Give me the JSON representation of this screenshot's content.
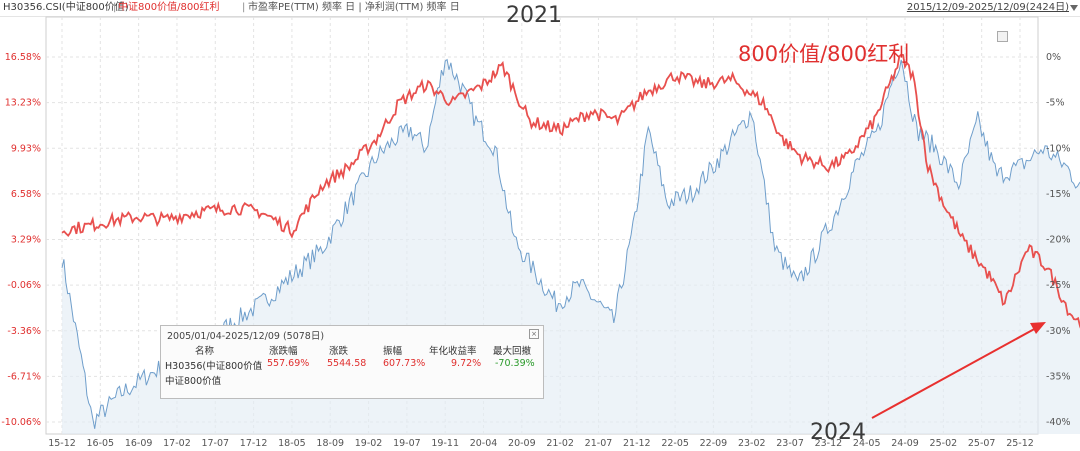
{
  "header": {
    "blue_series": "H30356.CSI(中证800价值)",
    "sep1": "|",
    "red_series": "中证800价值/800红利",
    "sep2": "|",
    "indicators": "市盈率PE(TTM) 频率 日 | 净利润(TTM) 频率 日",
    "range_link": "2015/12/09-2025/12/09(2424日)"
  },
  "annotations": {
    "year_2021": "2021",
    "year_2024": "2024",
    "ratio_title": "800价值/800红利",
    "arrow_color": "#e8302f"
  },
  "stats_panel": {
    "title": "2005/01/04-2025/12/09 (5078日)",
    "close_label": "×",
    "headers": [
      "名称",
      "涨跌幅",
      "涨跌",
      "振幅",
      "年化收益率",
      "最大回撤"
    ],
    "row1": {
      "name": "H30356(中证800价值",
      "change_pct": "557.69%",
      "change": "5544.58",
      "amplitude": "607.73%",
      "annual_return": "9.72%",
      "max_drawdown": "-70.39%"
    },
    "row2": {
      "name": "中证800价值"
    }
  },
  "chart_data": {
    "type": "line",
    "colors": {
      "ratio": "#e8504e",
      "index": "#6f9ecb",
      "index_fill": "#e4ecf5"
    },
    "x_ticks": [
      "15-12",
      "16-05",
      "16-09",
      "17-02",
      "17-07",
      "17-12",
      "18-05",
      "18-09",
      "19-02",
      "19-07",
      "19-11",
      "20-04",
      "20-09",
      "21-02",
      "21-07",
      "21-12",
      "22-05",
      "22-09",
      "23-02",
      "23-07",
      "23-12",
      "24-05",
      "24-09",
      "25-02",
      "25-07",
      "25-12"
    ],
    "left_axis": {
      "ticks": [
        "16.58%",
        "13.23%",
        "9.93%",
        "6.58%",
        "3.29%",
        "-0.06%",
        "-3.36%",
        "-6.71%",
        "-10.06%"
      ],
      "values": [
        16.58,
        13.23,
        9.93,
        6.58,
        3.29,
        -0.06,
        -3.36,
        -6.71,
        -10.06
      ]
    },
    "right_axis": {
      "ticks": [
        "0%",
        "-5%",
        "-10%",
        "-15%",
        "-20%",
        "-25%",
        "-30%",
        "-35%",
        "-40%"
      ],
      "values": [
        0,
        -5,
        -10,
        -15,
        -20,
        -25,
        -30,
        -35,
        -40
      ]
    },
    "series": [
      {
        "name": "中证800价值/800红利",
        "axis": "right",
        "points": [
          [
            0.0,
            -19.0
          ],
          [
            0.7,
            -18.5
          ],
          [
            1.2,
            -18.0
          ],
          [
            2.0,
            -17.5
          ],
          [
            2.7,
            -17.8
          ],
          [
            3.5,
            -17.0
          ],
          [
            4.5,
            -16.5
          ],
          [
            5.2,
            -17.0
          ],
          [
            6.0,
            -19.0
          ],
          [
            6.8,
            -14.0
          ],
          [
            7.5,
            -12.0
          ],
          [
            8.2,
            -9.0
          ],
          [
            8.5,
            -7.0
          ],
          [
            8.8,
            -5.0
          ],
          [
            9.5,
            -3.0
          ],
          [
            10.2,
            -5.0
          ],
          [
            11.0,
            -3.0
          ],
          [
            11.5,
            -1.0
          ],
          [
            12.2,
            -7.0
          ],
          [
            13.0,
            -8.0
          ],
          [
            13.8,
            -6.0
          ],
          [
            14.5,
            -7.0
          ],
          [
            15.2,
            -4.0
          ],
          [
            16.0,
            -2.0
          ],
          [
            16.7,
            -3.0
          ],
          [
            17.5,
            -2.5
          ],
          [
            18.3,
            -5.0
          ],
          [
            18.8,
            -9.0
          ],
          [
            19.3,
            -11.0
          ],
          [
            20.0,
            -12.0
          ],
          [
            20.5,
            -11.0
          ],
          [
            21.2,
            -7.0
          ],
          [
            21.6,
            -3.0
          ],
          [
            21.9,
            0.0
          ],
          [
            22.2,
            -2.0
          ],
          [
            22.6,
            -12.0
          ],
          [
            23.0,
            -16.0
          ],
          [
            23.5,
            -20.0
          ],
          [
            24.2,
            -24.0
          ],
          [
            24.6,
            -27.0
          ],
          [
            25.2,
            -21.0
          ],
          [
            25.7,
            -23.0
          ],
          [
            26.3,
            -28.0
          ],
          [
            27.0,
            -31.0
          ],
          [
            27.6,
            -31.5
          ],
          [
            28.2,
            -33.0
          ],
          [
            28.8,
            -35.0
          ],
          [
            29.5,
            -33.0
          ],
          [
            30.2,
            -33.5
          ],
          [
            30.8,
            -31.0
          ],
          [
            31.5,
            -34.0
          ],
          [
            32.0,
            -35.0
          ],
          [
            32.7,
            -36.0
          ],
          [
            33.3,
            -39.0
          ],
          [
            33.8,
            -40.0
          ],
          [
            34.2,
            -39.0
          ],
          [
            34.7,
            -38.0
          ],
          [
            35.3,
            -33.5
          ],
          [
            36.0,
            -32.0
          ],
          [
            36.5,
            -30.0
          ],
          [
            37.0,
            -32.0
          ],
          [
            37.6,
            -29.0
          ],
          [
            38.0,
            -31.0
          ],
          [
            38.6,
            -28.5
          ],
          [
            39.2,
            -29.5
          ],
          [
            39.8,
            -26.5
          ],
          [
            40.2,
            -28.0
          ],
          [
            40.6,
            -27.0
          ],
          [
            41.0,
            -29.0
          ],
          [
            41.4,
            -25.5
          ]
        ]
      },
      {
        "name": "H30356(中证800价值)",
        "axis": "right",
        "points": [
          [
            0.0,
            -22.0
          ],
          [
            0.5,
            -33.0
          ],
          [
            0.8,
            -40.0
          ],
          [
            1.5,
            -37.0
          ],
          [
            2.2,
            -35.0
          ],
          [
            3.0,
            -33.0
          ],
          [
            3.8,
            -31.0
          ],
          [
            4.5,
            -29.0
          ],
          [
            5.2,
            -27.0
          ],
          [
            6.0,
            -24.0
          ],
          [
            6.8,
            -21.0
          ],
          [
            7.5,
            -16.0
          ],
          [
            8.2,
            -11.0
          ],
          [
            8.7,
            -9.0
          ],
          [
            9.1,
            -8.0
          ],
          [
            9.5,
            -10.0
          ],
          [
            10.0,
            0.0
          ],
          [
            10.4,
            -3.0
          ],
          [
            10.8,
            -7.0
          ],
          [
            11.3,
            -10.0
          ],
          [
            11.8,
            -20.0
          ],
          [
            12.4,
            -24.0
          ],
          [
            12.9,
            -27.0
          ],
          [
            13.5,
            -25.0
          ],
          [
            14.0,
            -27.0
          ],
          [
            14.4,
            -29.0
          ],
          [
            14.9,
            -19.0
          ],
          [
            15.3,
            -8.0
          ],
          [
            15.8,
            -16.0
          ],
          [
            16.4,
            -15.0
          ],
          [
            17.0,
            -12.0
          ],
          [
            17.5,
            -9.0
          ],
          [
            18.0,
            -6.0
          ],
          [
            18.6,
            -21.0
          ],
          [
            19.2,
            -25.0
          ],
          [
            19.6,
            -22.0
          ],
          [
            20.2,
            -17.0
          ],
          [
            20.7,
            -12.0
          ],
          [
            21.3,
            -8.0
          ],
          [
            21.7,
            -2.0
          ],
          [
            21.9,
            0.0
          ],
          [
            22.3,
            -8.0
          ],
          [
            22.8,
            -10.0
          ],
          [
            23.4,
            -14.0
          ],
          [
            23.9,
            -7.0
          ],
          [
            24.4,
            -13.0
          ],
          [
            25.0,
            -12.0
          ],
          [
            25.6,
            -10.0
          ],
          [
            26.2,
            -12.0
          ],
          [
            26.7,
            -15.0
          ],
          [
            27.3,
            -20.0
          ],
          [
            27.8,
            -22.0
          ],
          [
            28.4,
            -18.0
          ],
          [
            28.8,
            -24.0
          ],
          [
            29.4,
            -22.0
          ],
          [
            30.0,
            -21.0
          ],
          [
            30.6,
            -20.0
          ],
          [
            31.0,
            -15.0
          ],
          [
            31.6,
            -13.0
          ],
          [
            32.1,
            -18.0
          ],
          [
            32.7,
            -19.0
          ],
          [
            33.2,
            -22.0
          ],
          [
            33.6,
            -25.0
          ],
          [
            34.0,
            -18.0
          ],
          [
            34.6,
            -15.0
          ],
          [
            35.1,
            -13.0
          ],
          [
            35.6,
            -17.0
          ],
          [
            36.1,
            -20.0
          ],
          [
            36.4,
            -21.0
          ],
          [
            36.6,
            -6.0
          ],
          [
            37.0,
            -7.0
          ],
          [
            37.6,
            -8.0
          ],
          [
            38.0,
            -9.0
          ],
          [
            38.6,
            -6.0
          ],
          [
            38.9,
            -13.0
          ],
          [
            39.2,
            -7.0
          ],
          [
            39.8,
            -4.0
          ],
          [
            40.2,
            -6.0
          ],
          [
            40.6,
            -3.0
          ],
          [
            41.0,
            -2.0
          ],
          [
            41.4,
            -1.0
          ]
        ]
      }
    ]
  }
}
